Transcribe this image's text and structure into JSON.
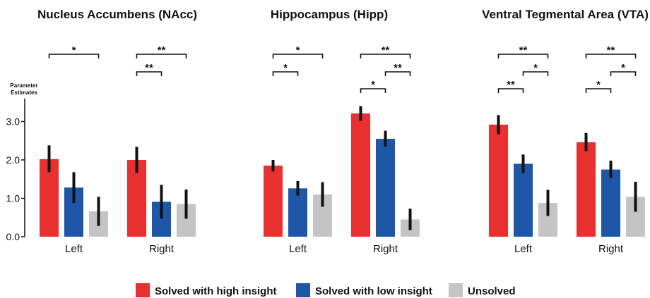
{
  "chart_data": {
    "type": "bar",
    "ylabel_line1": "Parameter",
    "ylabel_line2": "Estimates",
    "ylim": [
      0,
      3.7
    ],
    "yticks": [
      "0.0",
      "1.0",
      "2.0",
      "3.0"
    ],
    "ytick_values": [
      0,
      1,
      2,
      3
    ],
    "legend_position": "bottom",
    "series": [
      {
        "name": "Solved with high insight",
        "color": "#e8302e"
      },
      {
        "name": "Solved with low insight",
        "color": "#1f57a8"
      },
      {
        "name": "Unsolved",
        "color": "#c4c4c4"
      }
    ],
    "panels": [
      {
        "title": "Nucleus Accumbens (NAcc)",
        "groups": [
          {
            "label": "Left",
            "values": [
              2.02,
              1.28,
              0.66
            ],
            "errors": [
              [
                1.68,
                2.38
              ],
              [
                0.88,
                1.68
              ],
              [
                0.28,
                1.04
              ]
            ],
            "sig": [
              {
                "from": 0,
                "to": 2,
                "label": "*",
                "level": 1
              }
            ]
          },
          {
            "label": "Right",
            "values": [
              2.0,
              0.91,
              0.85
            ],
            "errors": [
              [
                1.66,
                2.34
              ],
              [
                0.47,
                1.35
              ],
              [
                0.47,
                1.23
              ]
            ],
            "sig": [
              {
                "from": 0,
                "to": 2,
                "label": "**",
                "level": 1
              },
              {
                "from": 0,
                "to": 1,
                "label": "**",
                "level": 2
              }
            ]
          }
        ]
      },
      {
        "title": "Hippocampus (Hipp)",
        "groups": [
          {
            "label": "Left",
            "values": [
              1.85,
              1.26,
              1.1
            ],
            "errors": [
              [
                1.7,
                2.0
              ],
              [
                1.07,
                1.45
              ],
              [
                0.78,
                1.42
              ]
            ],
            "sig": [
              {
                "from": 0,
                "to": 2,
                "label": "*",
                "level": 1
              },
              {
                "from": 0,
                "to": 1,
                "label": "*",
                "level": 2
              }
            ]
          },
          {
            "label": "Right",
            "values": [
              3.21,
              2.55,
              0.45
            ],
            "errors": [
              [
                3.02,
                3.4
              ],
              [
                2.35,
                2.76
              ],
              [
                0.17,
                0.73
              ]
            ],
            "sig": [
              {
                "from": 0,
                "to": 2,
                "label": "**",
                "level": 1
              },
              {
                "from": 1,
                "to": 2,
                "label": "**",
                "level": 2
              },
              {
                "from": 0,
                "to": 1,
                "label": "*",
                "level": 3
              }
            ]
          }
        ]
      },
      {
        "title": "Ventral Tegmental Area (VTA)",
        "groups": [
          {
            "label": "Left",
            "values": [
              2.92,
              1.9,
              0.88
            ],
            "errors": [
              [
                2.67,
                3.17
              ],
              [
                1.66,
                2.14
              ],
              [
                0.54,
                1.22
              ]
            ],
            "sig": [
              {
                "from": 0,
                "to": 2,
                "label": "**",
                "level": 1
              },
              {
                "from": 1,
                "to": 2,
                "label": "*",
                "level": 2
              },
              {
                "from": 0,
                "to": 1,
                "label": "**",
                "level": 3
              }
            ]
          },
          {
            "label": "Right",
            "values": [
              2.46,
              1.75,
              1.04
            ],
            "errors": [
              [
                2.23,
                2.7
              ],
              [
                1.53,
                1.98
              ],
              [
                0.65,
                1.43
              ]
            ],
            "sig": [
              {
                "from": 0,
                "to": 2,
                "label": "**",
                "level": 1
              },
              {
                "from": 1,
                "to": 2,
                "label": "*",
                "level": 2
              },
              {
                "from": 0,
                "to": 1,
                "label": "*",
                "level": 3
              }
            ]
          }
        ]
      }
    ]
  }
}
